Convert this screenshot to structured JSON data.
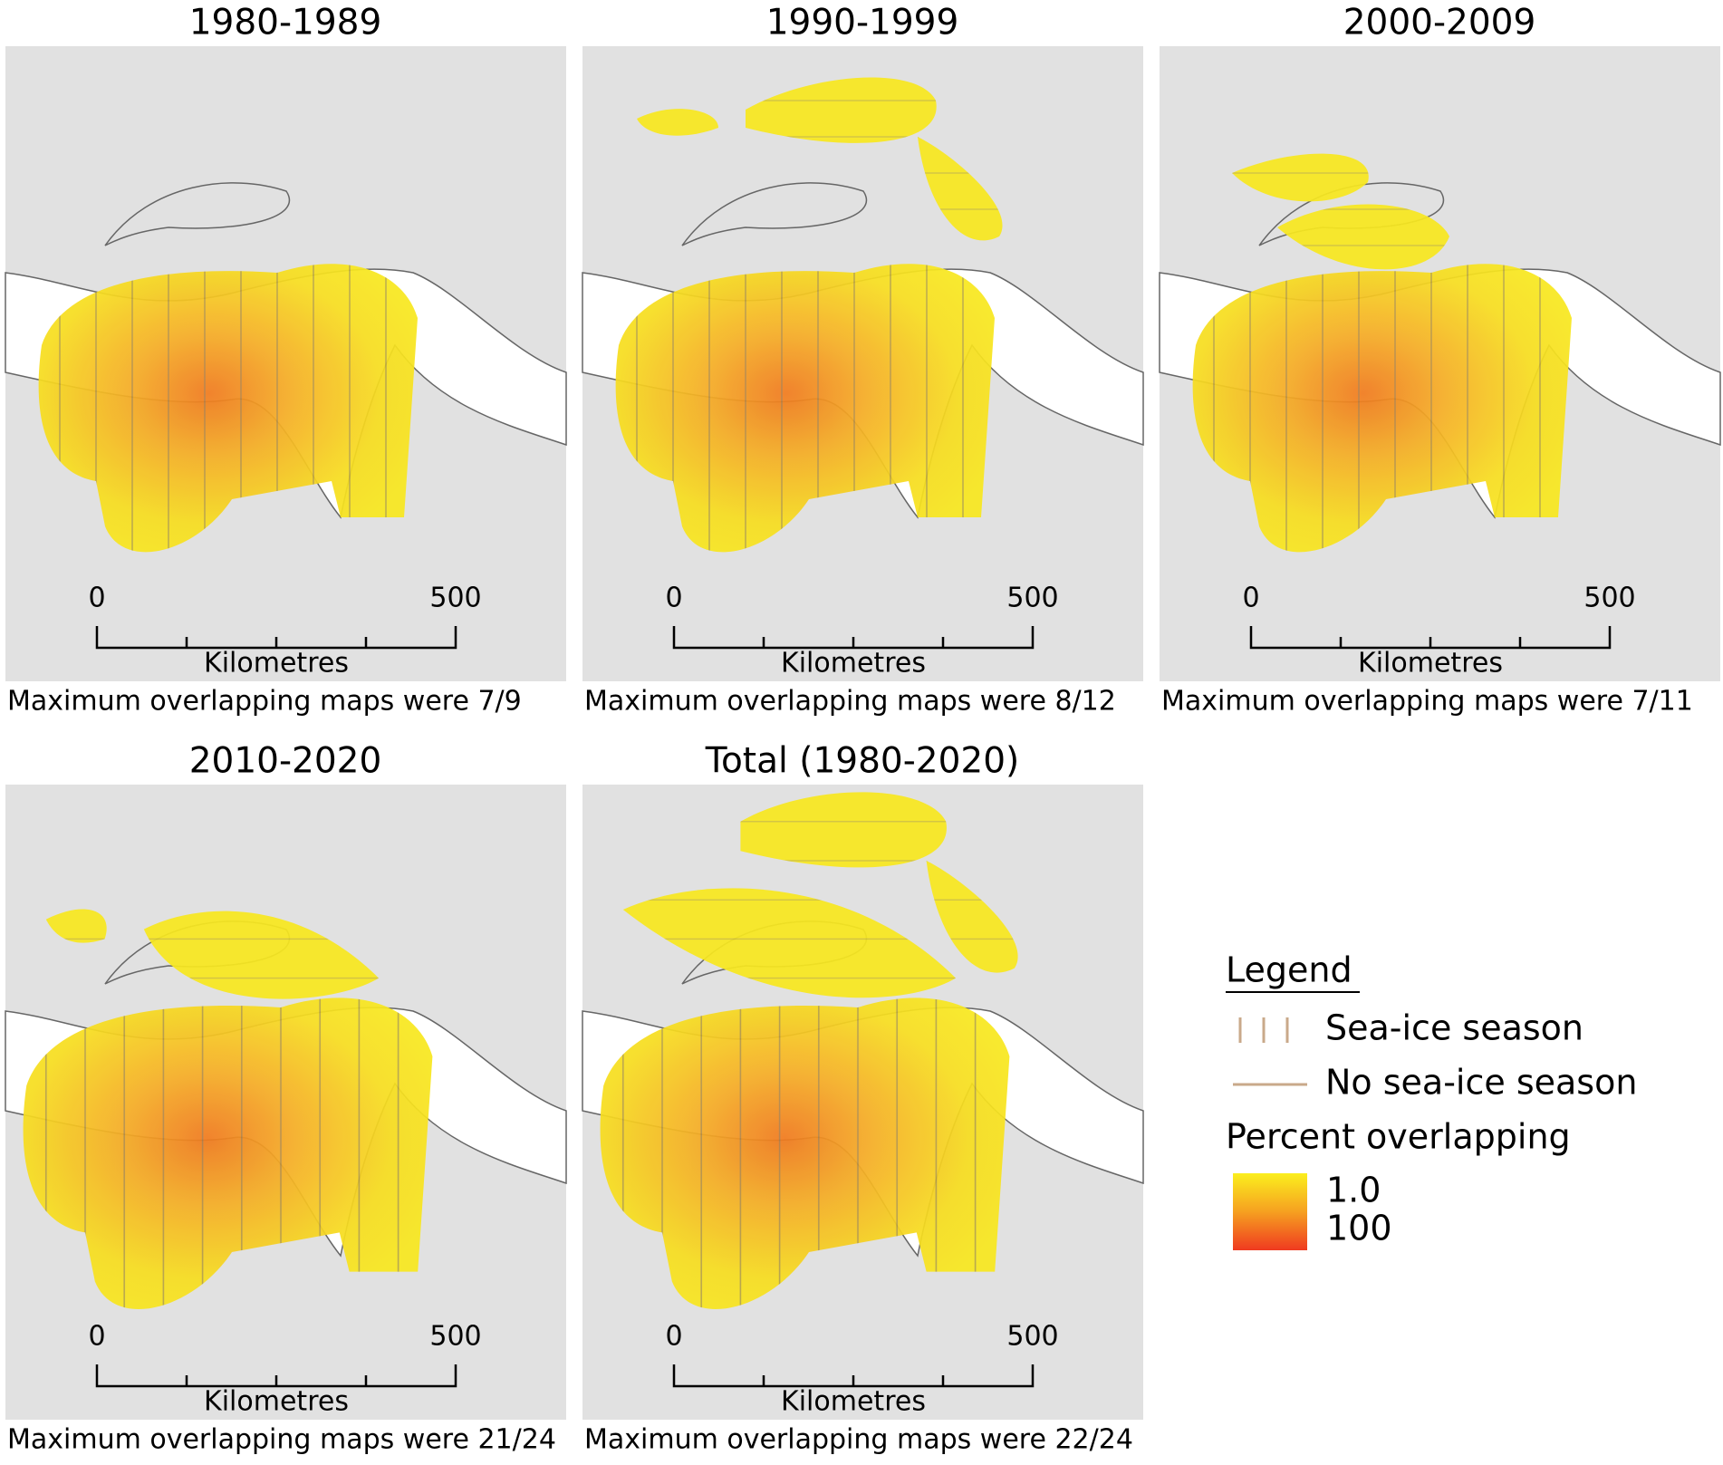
{
  "panels": [
    {
      "title": "1980-1989",
      "scale_start": "0",
      "scale_end": "500",
      "scale_unit": "Kilometres",
      "caption": "Maximum overlapping maps were 7/9"
    },
    {
      "title": "1990-1999",
      "scale_start": "0",
      "scale_end": "500",
      "scale_unit": "Kilometres",
      "caption": "Maximum overlapping maps were 8/12"
    },
    {
      "title": "2000-2009",
      "scale_start": "0",
      "scale_end": "500",
      "scale_unit": "Kilometres",
      "caption": "Maximum overlapping maps were 7/11"
    },
    {
      "title": "2010-2020",
      "scale_start": "0",
      "scale_end": "500",
      "scale_unit": "Kilometres",
      "caption": "Maximum overlapping maps were 21/24"
    },
    {
      "title": "Total (1980-2020)",
      "scale_start": "0",
      "scale_end": "500",
      "scale_unit": "Kilometres",
      "caption": "Maximum overlapping maps were 22/24"
    }
  ],
  "legend": {
    "title": "Legend",
    "items": [
      "Sea-ice season",
      "No sea-ice season"
    ],
    "gradient_title": "Percent overlapping",
    "gradient_low": "1.0",
    "gradient_high": "100"
  }
}
